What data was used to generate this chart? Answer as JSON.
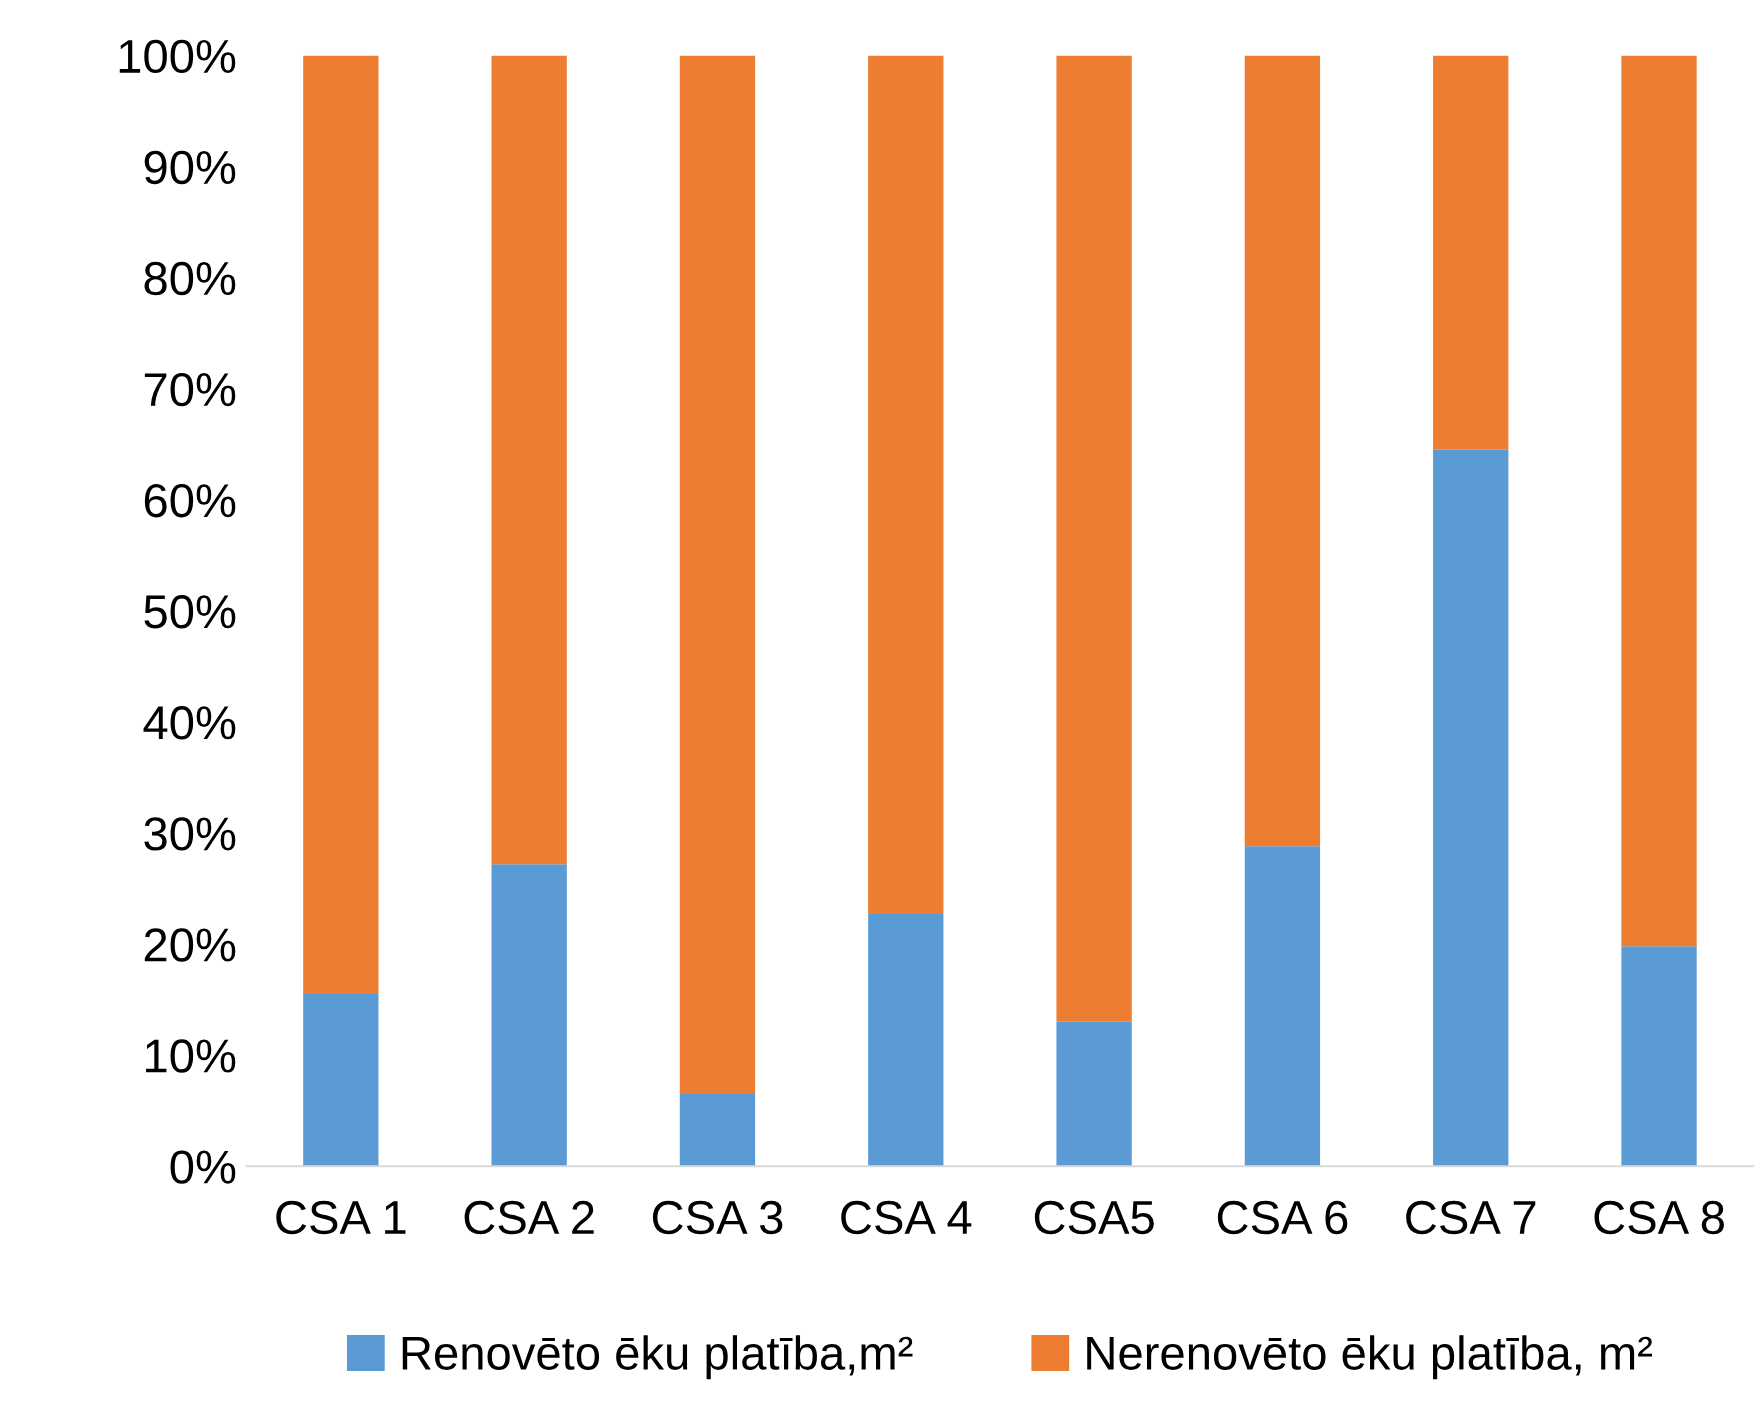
{
  "chart_data": {
    "type": "bar",
    "stacked": true,
    "categories": [
      "CSA 1",
      "CSA 2",
      "CSA 3",
      "CSA 4",
      "CSA5",
      "CSA 6",
      "CSA 7",
      "CSA 8"
    ],
    "series": [
      {
        "name": "Renovēto ēku platība,m²",
        "color": "#5b9bd5",
        "values": [
          15.5,
          27.2,
          6.5,
          22.7,
          13.0,
          28.8,
          64.5,
          19.8
        ]
      },
      {
        "name": "Nerenovēto ēku platība, m²",
        "color": "#ed7d31",
        "values": [
          84.5,
          72.8,
          93.5,
          77.3,
          87.0,
          71.2,
          35.5,
          80.2
        ]
      }
    ],
    "ylim": [
      0,
      100
    ],
    "yticks": [
      {
        "value": 0,
        "label": "0%"
      },
      {
        "value": 10,
        "label": "10%"
      },
      {
        "value": 20,
        "label": "20%"
      },
      {
        "value": 30,
        "label": "30%"
      },
      {
        "value": 40,
        "label": "40%"
      },
      {
        "value": 50,
        "label": "50%"
      },
      {
        "value": 60,
        "label": "60%"
      },
      {
        "value": 70,
        "label": "70%"
      },
      {
        "value": 80,
        "label": "80%"
      },
      {
        "value": 90,
        "label": "90%"
      },
      {
        "value": 100,
        "label": "100%"
      }
    ],
    "grid": false,
    "legend": "bottom"
  }
}
